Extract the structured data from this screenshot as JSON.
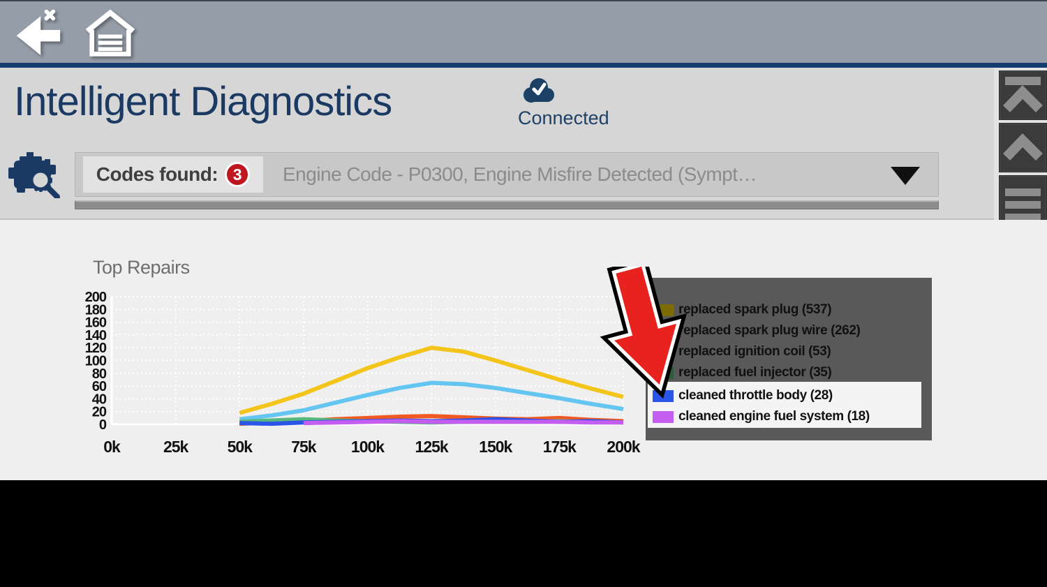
{
  "toolbar": {
    "back_icon": "back-arrow-with-x",
    "home_icon": "garage-home"
  },
  "header": {
    "title": "Intelligent Diagnostics",
    "connection_status": "Connected",
    "codes_found_label": "Codes found:",
    "codes_found_count": "3",
    "selected_code": "Engine Code - P0300, Engine Misfire Detected (Sympt…"
  },
  "side_buttons": [
    {
      "name": "scroll-to-top"
    },
    {
      "name": "scroll-up"
    },
    {
      "name": "menu"
    }
  ],
  "chart_data": {
    "type": "line",
    "title": "Top Repairs",
    "xlabel": "",
    "ylabel": "",
    "x_tick_labels": [
      "0k",
      "25k",
      "50k",
      "75k",
      "100k",
      "125k",
      "150k",
      "175k",
      "200k"
    ],
    "x_range_thousands": [
      0,
      200
    ],
    "ylim": [
      0,
      200
    ],
    "y_tick_step": 20,
    "grid": true,
    "legend_position": "right-overlay",
    "series": [
      {
        "name": "replaced spark plug (537)",
        "color": "#f3c51b",
        "legend_swatch": "#7d6b04",
        "points": [
          [
            50,
            18
          ],
          [
            62.5,
            32
          ],
          [
            75,
            48
          ],
          [
            87.5,
            68
          ],
          [
            100,
            88
          ],
          [
            112.5,
            105
          ],
          [
            125,
            120
          ],
          [
            137.5,
            114
          ],
          [
            150,
            100
          ],
          [
            162.5,
            85
          ],
          [
            175,
            70
          ],
          [
            187.5,
            56
          ],
          [
            200,
            43
          ]
        ]
      },
      {
        "name": "replaced spark plug wire (262)",
        "color": "#63c5f0",
        "legend_swatch": "#2f5d70",
        "points": [
          [
            50,
            8
          ],
          [
            62.5,
            14
          ],
          [
            75,
            22
          ],
          [
            87.5,
            34
          ],
          [
            100,
            46
          ],
          [
            112.5,
            57
          ],
          [
            125,
            65
          ],
          [
            137.5,
            63
          ],
          [
            150,
            57
          ],
          [
            162.5,
            49
          ],
          [
            175,
            41
          ],
          [
            187.5,
            32
          ],
          [
            200,
            24
          ]
        ]
      },
      {
        "name": "replaced ignition coil (53)",
        "color": "#f05a22",
        "legend_swatch": "#7e3a10",
        "points": [
          [
            50,
            1
          ],
          [
            62.5,
            3
          ],
          [
            75,
            5
          ],
          [
            87.5,
            8
          ],
          [
            100,
            10
          ],
          [
            112.5,
            12
          ],
          [
            125,
            13
          ],
          [
            137.5,
            11
          ],
          [
            150,
            9
          ],
          [
            162.5,
            8
          ],
          [
            175,
            10
          ],
          [
            187.5,
            7
          ],
          [
            200,
            5
          ]
        ]
      },
      {
        "name": "replaced fuel injector (35)",
        "color": "#58b87c",
        "legend_swatch": "#2d5c3a",
        "points": [
          [
            50,
            4
          ],
          [
            62.5,
            6
          ],
          [
            75,
            8
          ],
          [
            87.5,
            6
          ],
          [
            100,
            5
          ],
          [
            112.5,
            4
          ],
          [
            125,
            3
          ],
          [
            137.5,
            4
          ],
          [
            150,
            5
          ],
          [
            162.5,
            4
          ],
          [
            175,
            5
          ],
          [
            187.5,
            4
          ],
          [
            200,
            3
          ]
        ]
      },
      {
        "name": "cleaned throttle body (28)",
        "color": "#2b55e8",
        "legend_swatch": "#2b55e8",
        "points": [
          [
            50,
            2
          ],
          [
            62.5,
            1
          ],
          [
            75,
            3
          ],
          [
            87.5,
            4
          ],
          [
            100,
            5
          ],
          [
            112.5,
            6
          ],
          [
            125,
            5
          ],
          [
            137.5,
            6
          ],
          [
            150,
            8
          ],
          [
            162.5,
            6
          ],
          [
            175,
            4
          ],
          [
            187.5,
            5
          ],
          [
            200,
            3
          ]
        ]
      },
      {
        "name": "cleaned engine fuel system (18)",
        "color": "#c45ef0",
        "legend_swatch": "#c45ef0",
        "points": [
          [
            75,
            2
          ],
          [
            87.5,
            3
          ],
          [
            100,
            4
          ],
          [
            112.5,
            5
          ],
          [
            125,
            4
          ],
          [
            137.5,
            4
          ],
          [
            150,
            4
          ],
          [
            162.5,
            4
          ],
          [
            175,
            4
          ],
          [
            187.5,
            3
          ],
          [
            200,
            3
          ]
        ]
      }
    ],
    "highlighted_legend_items": [
      "cleaned throttle body (28)",
      "cleaned engine fuel system (18)"
    ]
  },
  "colors": {
    "title_navy": "#1b3a63",
    "badge_red": "#c0161f",
    "arrow_red": "#e8231f",
    "legend_panel": "#595959",
    "toolbar_gray": "#959da8"
  }
}
